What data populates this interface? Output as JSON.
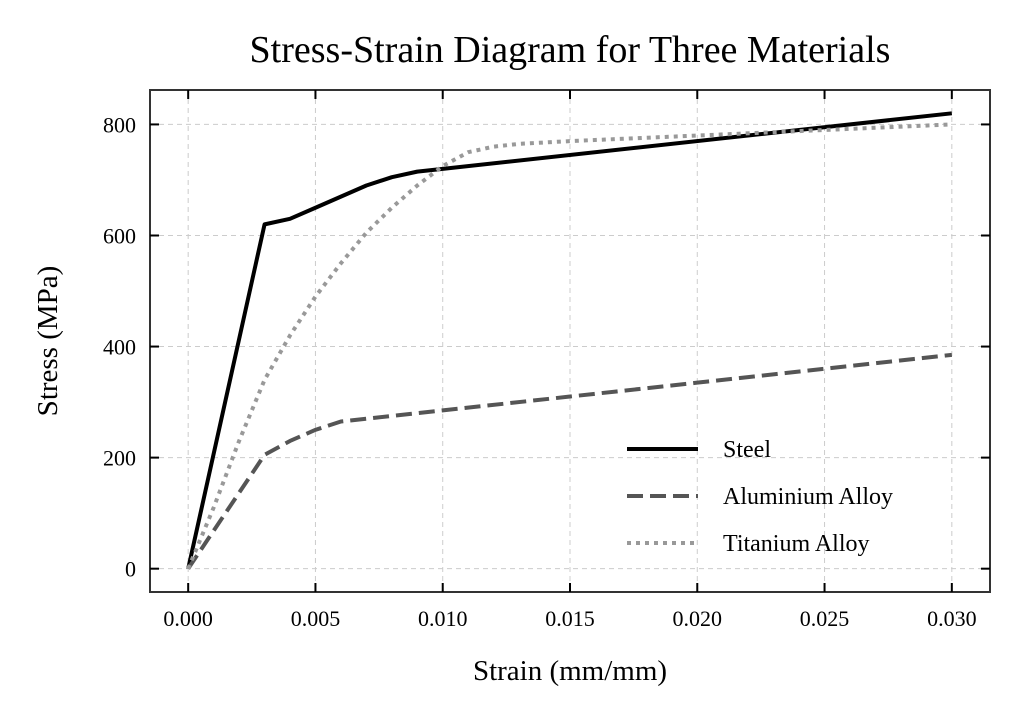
{
  "chart_data": {
    "type": "line",
    "title": "Stress-Strain Diagram for Three Materials",
    "xlabel": "Strain (mm/mm)",
    "ylabel": "Stress (MPa)",
    "xlim": [
      -0.0015,
      0.0315
    ],
    "ylim": [
      -42,
      862
    ],
    "xticks": [
      0.0,
      0.005,
      0.01,
      0.015,
      0.02,
      0.025,
      0.03
    ],
    "xtick_labels": [
      "0.000",
      "0.005",
      "0.010",
      "0.015",
      "0.020",
      "0.025",
      "0.030"
    ],
    "yticks": [
      0,
      200,
      400,
      600,
      800
    ],
    "ytick_labels": [
      "0",
      "200",
      "400",
      "600",
      "800"
    ],
    "grid": true,
    "legend_position": "lower-right",
    "series": [
      {
        "name": "Steel",
        "color": "#000000",
        "style": "solid",
        "x": [
          0.0,
          0.003,
          0.004,
          0.005,
          0.006,
          0.007,
          0.008,
          0.009,
          0.01,
          0.03
        ],
        "y": [
          0,
          620,
          630,
          650,
          670,
          690,
          705,
          715,
          720,
          820
        ]
      },
      {
        "name": "Aluminium Alloy",
        "color": "#555555",
        "style": "dashed",
        "x": [
          0.0,
          0.003,
          0.004,
          0.005,
          0.006,
          0.01,
          0.015,
          0.02,
          0.025,
          0.03
        ],
        "y": [
          0,
          205,
          230,
          250,
          265,
          285,
          310,
          335,
          360,
          385
        ]
      },
      {
        "name": "Titanium Alloy",
        "color": "#999999",
        "style": "dotted",
        "x": [
          0.0,
          0.001,
          0.002,
          0.003,
          0.004,
          0.005,
          0.006,
          0.007,
          0.008,
          0.009,
          0.01,
          0.011,
          0.012,
          0.013,
          0.015,
          0.02,
          0.025,
          0.03
        ],
        "y": [
          0,
          110,
          230,
          340,
          420,
          490,
          550,
          605,
          650,
          690,
          725,
          750,
          760,
          765,
          770,
          780,
          790,
          800
        ]
      }
    ]
  }
}
